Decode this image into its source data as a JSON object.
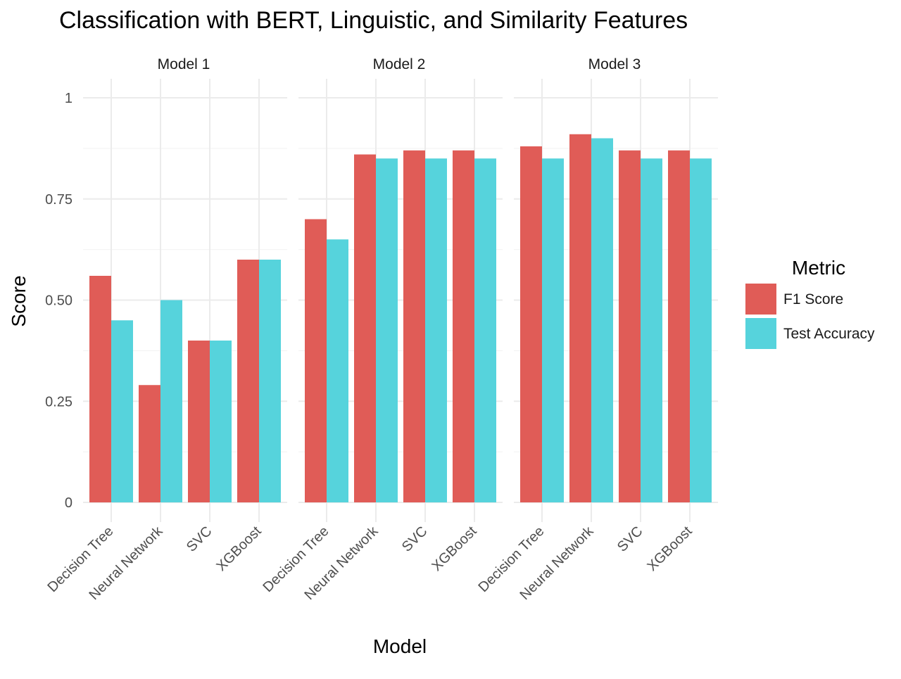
{
  "chart_data": {
    "type": "bar",
    "title": "Classification with BERT, Linguistic, and Similarity Features",
    "xlabel": "Model",
    "ylabel": "Score",
    "ylim": [
      0,
      1
    ],
    "yticks": [
      0,
      0.25,
      0.5,
      0.75,
      1
    ],
    "ytick_labels": [
      "0",
      "0.25",
      "0.50",
      "0.75",
      "1"
    ],
    "categories": [
      "Decision Tree",
      "Neural Network",
      "SVC",
      "XGBoost"
    ],
    "facet_label": "",
    "legend": {
      "title": "Metric",
      "position": "right"
    },
    "grid": true,
    "colors": {
      "F1 Score": "#e05c57",
      "Test Accuracy": "#56d3dc"
    },
    "facets": [
      {
        "name": "Model 1",
        "series": [
          {
            "name": "F1 Score",
            "values": [
              0.56,
              0.29,
              0.4,
              0.6
            ]
          },
          {
            "name": "Test Accuracy",
            "values": [
              0.45,
              0.5,
              0.4,
              0.6
            ]
          }
        ]
      },
      {
        "name": "Model 2",
        "series": [
          {
            "name": "F1 Score",
            "values": [
              0.7,
              0.86,
              0.87,
              0.87
            ]
          },
          {
            "name": "Test Accuracy",
            "values": [
              0.65,
              0.85,
              0.85,
              0.85
            ]
          }
        ]
      },
      {
        "name": "Model 3",
        "series": [
          {
            "name": "F1 Score",
            "values": [
              0.88,
              0.91,
              0.87,
              0.87
            ]
          },
          {
            "name": "Test Accuracy",
            "values": [
              0.85,
              0.9,
              0.85,
              0.85
            ]
          }
        ]
      }
    ]
  }
}
